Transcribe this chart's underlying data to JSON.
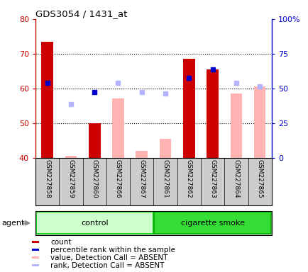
{
  "title": "GDS3054 / 1431_at",
  "samples": [
    "GSM227858",
    "GSM227859",
    "GSM227860",
    "GSM227866",
    "GSM227867",
    "GSM227861",
    "GSM227862",
    "GSM227863",
    "GSM227864",
    "GSM227865"
  ],
  "groups": [
    "control",
    "control",
    "control",
    "control",
    "control",
    "cigarette smoke",
    "cigarette smoke",
    "cigarette smoke",
    "cigarette smoke",
    "cigarette smoke"
  ],
  "count_present": [
    73.5,
    null,
    50.0,
    null,
    null,
    null,
    68.5,
    65.5,
    null,
    null
  ],
  "count_absent": [
    null,
    40.5,
    null,
    57.0,
    42.0,
    45.5,
    null,
    null,
    58.5,
    60.5
  ],
  "rank_present": [
    61.5,
    null,
    59.0,
    null,
    null,
    null,
    63.0,
    65.5,
    null,
    null
  ],
  "rank_absent": [
    null,
    55.5,
    null,
    61.5,
    59.0,
    58.5,
    null,
    null,
    61.5,
    60.5
  ],
  "ylim": [
    40,
    80
  ],
  "yticks": [
    40,
    50,
    60,
    70,
    80
  ],
  "right_yticks": [
    0,
    25,
    50,
    75,
    100
  ],
  "right_ylabels": [
    "0",
    "25",
    "50",
    "75",
    "100%"
  ],
  "color_count_present": "#cc0000",
  "color_count_absent": "#ffb3b3",
  "color_rank_present": "#0000cc",
  "color_rank_absent": "#b3b3ff",
  "color_control_light": "#c8f5c8",
  "color_control_dark": "#33dd33",
  "color_smoke_light": "#33dd33",
  "bar_width": 0.5,
  "marker_size": 5,
  "grid_lines": [
    50,
    60,
    70
  ]
}
